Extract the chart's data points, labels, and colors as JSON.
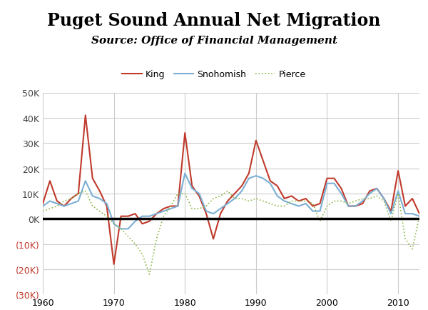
{
  "title": "Puget Sound Annual Net Migration",
  "subtitle": "Source: Office of Financial Management",
  "title_fontsize": 17,
  "subtitle_fontsize": 11,
  "background_color": "#ffffff",
  "grid_color": "#cccccc",
  "zero_line_color": "#000000",
  "king_color": "#c0392b",
  "snohomish_color": "#7bafd4",
  "pierce_color": "#8db84a",
  "years": [
    1960,
    1961,
    1962,
    1963,
    1964,
    1965,
    1966,
    1967,
    1968,
    1969,
    1970,
    1971,
    1972,
    1973,
    1974,
    1975,
    1976,
    1977,
    1978,
    1979,
    1980,
    1981,
    1982,
    1983,
    1984,
    1985,
    1986,
    1987,
    1988,
    1989,
    1990,
    1991,
    1992,
    1993,
    1994,
    1995,
    1996,
    1997,
    1998,
    1999,
    2000,
    2001,
    2002,
    2003,
    2004,
    2005,
    2006,
    2007,
    2008,
    2009,
    2010,
    2011,
    2012,
    2013
  ],
  "king": [
    6000,
    15000,
    7000,
    5000,
    8000,
    10000,
    41000,
    16000,
    11000,
    5000,
    -18000,
    1000,
    1000,
    2000,
    -2000,
    -1000,
    2000,
    4000,
    5000,
    5000,
    34000,
    13000,
    9000,
    2000,
    -8000,
    2000,
    7000,
    10000,
    13000,
    18000,
    31000,
    23000,
    15000,
    13000,
    8000,
    9000,
    7000,
    8000,
    5000,
    6000,
    16000,
    16000,
    12000,
    5000,
    5000,
    6000,
    11000,
    12000,
    8000,
    3000,
    19000,
    5000,
    8000,
    2000
  ],
  "snohomish": [
    5000,
    7000,
    6000,
    5000,
    6000,
    7000,
    15000,
    9000,
    8000,
    6000,
    -2000,
    -4000,
    -4000,
    -1000,
    1000,
    1000,
    2000,
    3000,
    4000,
    5000,
    18000,
    12000,
    10000,
    3000,
    2000,
    4000,
    6000,
    8000,
    11000,
    16000,
    17000,
    16000,
    14000,
    9000,
    7000,
    6000,
    5000,
    6000,
    3000,
    3000,
    14000,
    14000,
    10000,
    5000,
    5000,
    7000,
    10000,
    12000,
    8000,
    2000,
    11000,
    2000,
    2000,
    1000
  ],
  "pierce": [
    3000,
    4000,
    5000,
    7000,
    8000,
    10000,
    11000,
    5000,
    3000,
    1000,
    -2000,
    -4000,
    -7000,
    -10000,
    -14000,
    -22000,
    -8000,
    1000,
    5000,
    10000,
    10000,
    4000,
    4000,
    5000,
    8000,
    9000,
    11000,
    8000,
    8000,
    7000,
    8000,
    7000,
    6000,
    5000,
    5000,
    7000,
    7000,
    7000,
    6000,
    -1000,
    5000,
    7000,
    7000,
    6000,
    7000,
    8000,
    8000,
    9000,
    7000,
    -1000,
    10000,
    -8000,
    -12000,
    1000
  ],
  "ylim": [
    -30000,
    50000
  ],
  "yticks": [
    -30000,
    -20000,
    -10000,
    0,
    10000,
    20000,
    30000,
    40000,
    50000
  ],
  "xlim": [
    1960,
    2013
  ],
  "xticks": [
    1960,
    1970,
    1980,
    1990,
    2000,
    2010
  ]
}
